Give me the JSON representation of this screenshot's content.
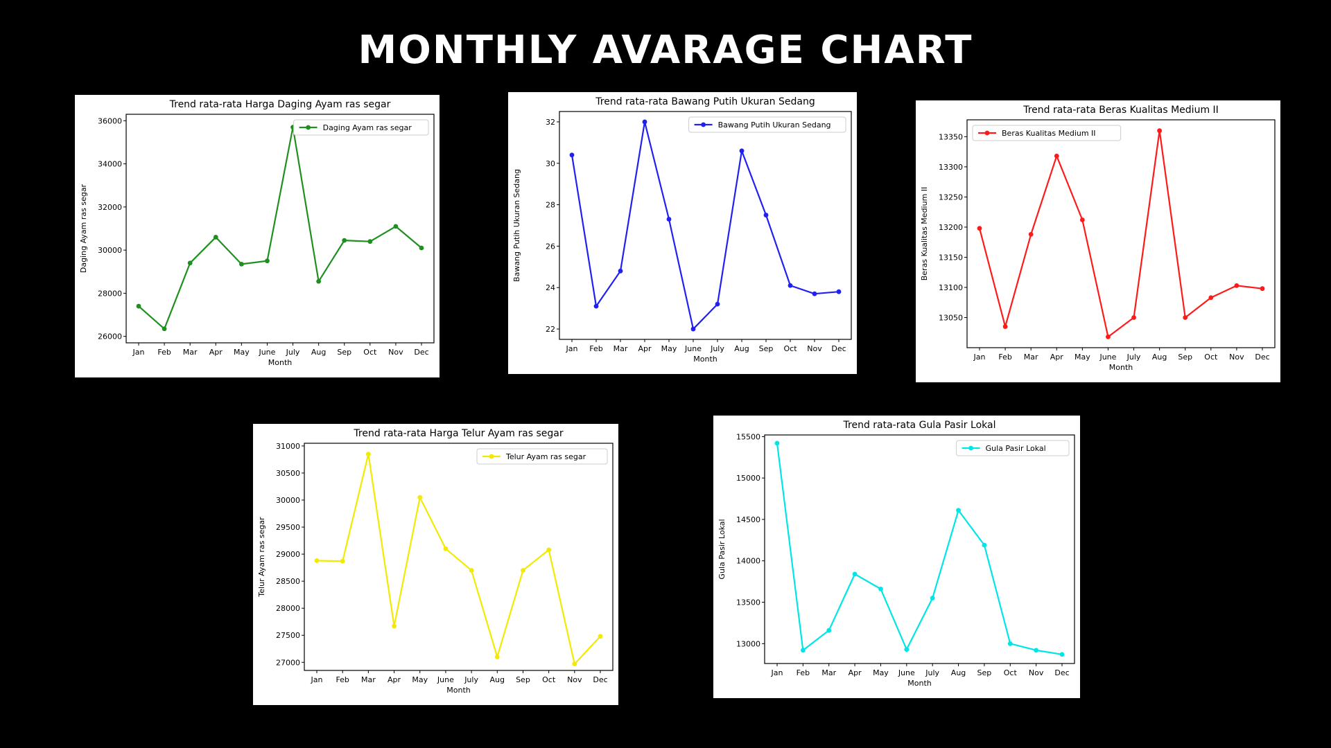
{
  "page": {
    "title": "MONTHLY AVARAGE CHART"
  },
  "chart_data": [
    {
      "type": "line",
      "title": "Trend rata-rata Harga Daging Ayam ras segar",
      "xlabel": "Month",
      "ylabel": "Daging Ayam ras segar",
      "categories": [
        "Jan",
        "Feb",
        "Mar",
        "Apr",
        "May",
        "June",
        "July",
        "Aug",
        "Sep",
        "Oct",
        "Nov",
        "Dec"
      ],
      "series": [
        {
          "name": "Daging Ayam ras segar",
          "color": "#1f8f1f",
          "values": [
            27400,
            26350,
            29400,
            30600,
            29350,
            29500,
            35700,
            28550,
            30450,
            30400,
            31100,
            30100
          ]
        }
      ],
      "ylim": [
        25700,
        36300
      ],
      "yticks": [
        26000,
        28000,
        30000,
        32000,
        34000,
        36000
      ],
      "legend": "top-right",
      "grid": false
    },
    {
      "type": "line",
      "title": "Trend rata-rata Bawang Putih Ukuran Sedang",
      "xlabel": "Month",
      "ylabel": "Bawang Putih Ukuran Sedang",
      "categories": [
        "Jan",
        "Feb",
        "Mar",
        "Apr",
        "May",
        "June",
        "July",
        "Aug",
        "Sep",
        "Oct",
        "Nov",
        "Dec"
      ],
      "series": [
        {
          "name": "Bawang Putih Ukuran Sedang",
          "color": "#2020f0",
          "values": [
            30.4,
            23.1,
            24.8,
            32.0,
            27.3,
            22.0,
            23.2,
            30.6,
            27.5,
            24.1,
            23.7,
            23.8
          ]
        }
      ],
      "ylim": [
        21.5,
        32.5
      ],
      "yticks": [
        22,
        24,
        26,
        28,
        30,
        32
      ],
      "legend": "top-right",
      "grid": false
    },
    {
      "type": "line",
      "title": "Trend rata-rata Beras Kualitas Medium II",
      "xlabel": "Month",
      "ylabel": "Beras Kualitas Medium II",
      "categories": [
        "Jan",
        "Feb",
        "Mar",
        "Apr",
        "May",
        "June",
        "July",
        "Aug",
        "Sep",
        "Oct",
        "Nov",
        "Dec"
      ],
      "series": [
        {
          "name": "Beras Kualitas Medium II",
          "color": "#ff1a1a",
          "values": [
            13198,
            13035,
            13188,
            13318,
            13212,
            13018,
            13050,
            13360,
            13050,
            13083,
            13103,
            13098
          ]
        }
      ],
      "ylim": [
        13000,
        13378
      ],
      "yticks": [
        13050,
        13100,
        13150,
        13200,
        13250,
        13300,
        13350
      ],
      "legend": "top-left",
      "grid": false
    },
    {
      "type": "line",
      "title": "Trend rata-rata Harga Telur Ayam ras segar",
      "xlabel": "Month",
      "ylabel": "Telur Ayam ras segar",
      "categories": [
        "Jan",
        "Feb",
        "Mar",
        "Apr",
        "May",
        "June",
        "July",
        "Aug",
        "Sep",
        "Oct",
        "Nov",
        "Dec"
      ],
      "series": [
        {
          "name": "Telur Ayam ras segar",
          "color": "#f2ea00",
          "values": [
            28880,
            28870,
            30850,
            27670,
            30050,
            29100,
            28700,
            27100,
            28700,
            29080,
            26970,
            27480
          ]
        }
      ],
      "ylim": [
        26850,
        31050
      ],
      "yticks": [
        27000,
        27500,
        28000,
        28500,
        29000,
        29500,
        30000,
        30500,
        31000
      ],
      "legend": "top-right",
      "grid": false
    },
    {
      "type": "line",
      "title": "Trend rata-rata Gula Pasir Lokal",
      "xlabel": "Month",
      "ylabel": "Gula Pasir Lokal",
      "categories": [
        "Jan",
        "Feb",
        "Mar",
        "Apr",
        "May",
        "June",
        "July",
        "Aug",
        "Sep",
        "Oct",
        "Nov",
        "Dec"
      ],
      "series": [
        {
          "name": "Gula Pasir Lokal",
          "color": "#00e6e6",
          "values": [
            15420,
            12920,
            13160,
            13840,
            13660,
            12930,
            13550,
            14610,
            14190,
            13000,
            12920,
            12870
          ]
        }
      ],
      "ylim": [
        12760,
        15520
      ],
      "yticks": [
        13000,
        13500,
        14000,
        14500,
        15000,
        15500
      ],
      "legend": "top-right",
      "grid": false
    }
  ]
}
